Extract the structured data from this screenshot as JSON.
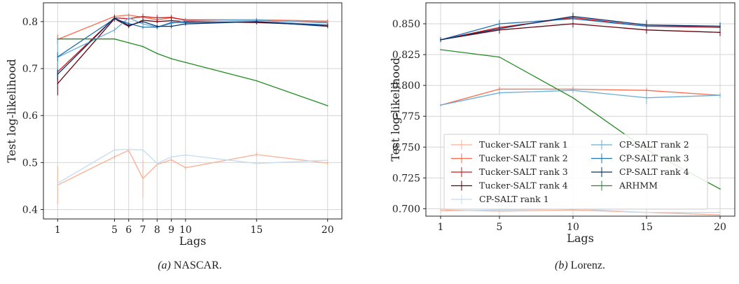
{
  "chart_data": [
    {
      "type": "line",
      "caption": {
        "label": "(a)",
        "text": " NASCAR."
      },
      "xlabel": "Lags",
      "ylabel": "Test log-likelihood",
      "xlim": [
        0,
        21
      ],
      "ylim": [
        0.38,
        0.84
      ],
      "xticks": [
        1,
        5,
        6,
        7,
        8,
        9,
        10,
        15,
        20
      ],
      "yticks": [
        0.4,
        0.5,
        0.6,
        0.7,
        0.8
      ],
      "grid": true,
      "legend": "none",
      "x": [
        1,
        5,
        6,
        7,
        8,
        9,
        10,
        15,
        20
      ],
      "series": [
        {
          "name": "Tucker-SALT rank 1",
          "color": "#fcae91",
          "values": [
            0.452,
            0.512,
            0.526,
            0.466,
            0.496,
            0.506,
            0.489,
            0.517,
            0.499
          ],
          "err": [
            0.04,
            0.004,
            0.004,
            0.04,
            0.004,
            0.004,
            0.004,
            0.004,
            0.004
          ]
        },
        {
          "name": "Tucker-SALT rank 2",
          "color": "#fb6a4a",
          "values": [
            0.762,
            0.811,
            0.814,
            0.809,
            0.804,
            0.808,
            0.804,
            0.804,
            0.801
          ],
          "err": [
            0.01,
            0.005,
            0.004,
            0.004,
            0.004,
            0.004,
            0.004,
            0.004,
            0.004
          ]
        },
        {
          "name": "Tucker-SALT rank 3",
          "color": "#cb181d",
          "values": [
            0.693,
            0.808,
            0.806,
            0.811,
            0.808,
            0.809,
            0.803,
            0.803,
            0.798
          ],
          "err": [
            0.02,
            0.006,
            0.004,
            0.006,
            0.006,
            0.005,
            0.004,
            0.004,
            0.004
          ]
        },
        {
          "name": "Tucker-SALT rank 4",
          "color": "#67000d",
          "values": [
            0.668,
            0.806,
            0.79,
            0.803,
            0.8,
            0.802,
            0.8,
            0.798,
            0.792
          ],
          "err": [
            0.025,
            0.006,
            0.004,
            0.005,
            0.004,
            0.004,
            0.004,
            0.004,
            0.004
          ]
        },
        {
          "name": "CP-SALT rank 1",
          "color": "#c6dbef",
          "values": [
            0.456,
            0.527,
            0.528,
            0.527,
            0.498,
            0.512,
            0.516,
            0.498,
            0.505
          ],
          "err": [
            0.004,
            0.003,
            0.003,
            0.003,
            0.004,
            0.003,
            0.003,
            0.003,
            0.003
          ]
        },
        {
          "name": "CP-SALT rank 2",
          "color": "#6baed6",
          "values": [
            0.724,
            0.782,
            0.808,
            0.795,
            0.788,
            0.796,
            0.802,
            0.804,
            0.797
          ],
          "err": [
            0.045,
            0.006,
            0.004,
            0.004,
            0.004,
            0.004,
            0.004,
            0.004,
            0.004
          ]
        },
        {
          "name": "CP-SALT rank 3",
          "color": "#2171b5",
          "values": [
            0.725,
            0.806,
            0.796,
            0.788,
            0.788,
            0.798,
            0.798,
            0.8,
            0.793
          ],
          "err": [
            0.01,
            0.005,
            0.004,
            0.004,
            0.004,
            0.004,
            0.004,
            0.004,
            0.004
          ]
        },
        {
          "name": "CP-SALT rank 4",
          "color": "#08306b",
          "values": [
            0.688,
            0.808,
            0.792,
            0.8,
            0.79,
            0.79,
            0.795,
            0.8,
            0.79
          ],
          "err": [
            0.01,
            0.005,
            0.004,
            0.004,
            0.004,
            0.004,
            0.004,
            0.004,
            0.004
          ]
        },
        {
          "name": "ARHMM",
          "color": "#238b23",
          "values": [
            0.763,
            0.763,
            0.755,
            0.747,
            0.732,
            0.721,
            0.713,
            0.674,
            0.621
          ],
          "err": [
            0,
            0,
            0,
            0,
            0,
            0,
            0,
            0,
            0
          ]
        }
      ]
    },
    {
      "type": "line",
      "caption": {
        "label": "(b)",
        "text": " Lorenz."
      },
      "xlabel": "Lags",
      "ylabel": "Test log-likelihood",
      "xlim": [
        0,
        21
      ],
      "ylim": [
        0.694,
        0.867
      ],
      "xticks": [
        1,
        5,
        10,
        15,
        20
      ],
      "yticks": [
        0.7,
        0.725,
        0.75,
        0.775,
        0.8,
        0.825,
        0.85
      ],
      "ytick_labels": [
        "0.700",
        "0.725",
        "0.750",
        "0.775",
        "0.800",
        "0.825",
        "0.850"
      ],
      "grid": true,
      "legend": "lower-left",
      "x": [
        1,
        5,
        10,
        15,
        20
      ],
      "series": [
        {
          "name": "Tucker-SALT rank 1",
          "color": "#fcae91",
          "values": [
            0.699,
            0.698,
            0.699,
            0.697,
            0.695
          ],
          "err": [
            0,
            0,
            0,
            0,
            0
          ]
        },
        {
          "name": "Tucker-SALT rank 2",
          "color": "#fb6a4a",
          "values": [
            0.784,
            0.797,
            0.797,
            0.796,
            0.792
          ],
          "err": [
            0.001,
            0.002,
            0.002,
            0.002,
            0.002
          ]
        },
        {
          "name": "Tucker-SALT rank 3",
          "color": "#cb181d",
          "values": [
            0.837,
            0.847,
            0.855,
            0.848,
            0.847
          ],
          "err": [
            0.002,
            0.003,
            0.003,
            0.003,
            0.003
          ]
        },
        {
          "name": "Tucker-SALT rank 4",
          "color": "#67000d",
          "values": [
            0.837,
            0.845,
            0.85,
            0.845,
            0.843
          ],
          "err": [
            0.002,
            0.003,
            0.003,
            0.003,
            0.003
          ]
        },
        {
          "name": "CP-SALT rank 1",
          "color": "#c6dbef",
          "values": [
            0.698,
            0.699,
            0.7,
            0.697,
            0.697
          ],
          "err": [
            0,
            0,
            0,
            0,
            0
          ]
        },
        {
          "name": "CP-SALT rank 2",
          "color": "#6baed6",
          "values": [
            0.784,
            0.794,
            0.796,
            0.79,
            0.792
          ],
          "err": [
            0.001,
            0.002,
            0.002,
            0.005,
            0.002
          ]
        },
        {
          "name": "CP-SALT rank 3",
          "color": "#2171b5",
          "values": [
            0.837,
            0.85,
            0.854,
            0.848,
            0.848
          ],
          "err": [
            0.002,
            0.003,
            0.003,
            0.003,
            0.003
          ]
        },
        {
          "name": "CP-SALT rank 4",
          "color": "#08306b",
          "values": [
            0.837,
            0.846,
            0.856,
            0.849,
            0.848
          ],
          "err": [
            0.002,
            0.003,
            0.003,
            0.004,
            0.003
          ]
        },
        {
          "name": "ARHMM",
          "color": "#238b23",
          "values": [
            0.829,
            0.823,
            0.79,
            0.748,
            0.716
          ],
          "err": [
            0,
            0,
            0,
            0,
            0
          ]
        }
      ]
    }
  ]
}
